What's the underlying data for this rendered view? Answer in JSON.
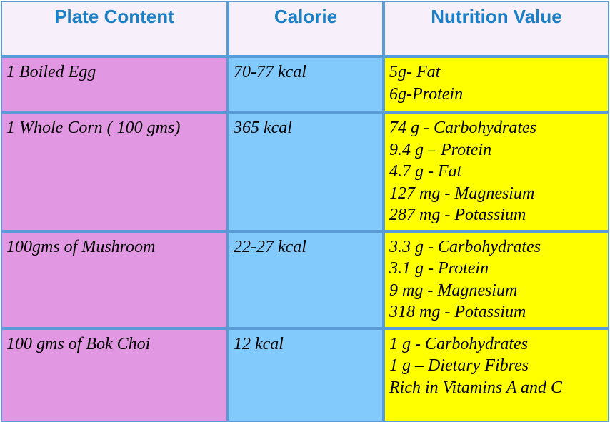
{
  "headers": {
    "plate": "Plate Content",
    "calorie": "Calorie",
    "nutrition": "Nutrition Value"
  },
  "rows": [
    {
      "plate": "1 Boiled Egg",
      "calorie": "70-77 kcal",
      "nutrition": [
        "5g- Fat",
        "6g-Protein"
      ]
    },
    {
      "plate": "1 Whole Corn ( 100 gms)",
      "calorie": "365 kcal",
      "nutrition": [
        "74 g - Carbohydrates",
        "9.4 g – Protein",
        "4.7 g - Fat",
        "127 mg - Magnesium",
        "287 mg - Potassium"
      ]
    },
    {
      "plate": "100gms of Mushroom",
      "calorie": "22-27 kcal",
      "nutrition": [
        "3.3 g - Carbohydrates",
        "3.1 g - Protein",
        "9 mg - Magnesium",
        "318 mg - Potassium"
      ]
    },
    {
      "plate": "100 gms of Bok Choi",
      "calorie": "12 kcal",
      "nutrition": [
        "1 g - Carbohydrates",
        "1 g – Dietary Fibres",
        "Rich in Vitamins A and C"
      ]
    }
  ],
  "colors": {
    "header_bg": "#f7f0fa",
    "header_text": "#1a7fc4",
    "plate_bg": "#e197e2",
    "calorie_bg": "#82c9fc",
    "nutrition_bg": "#ffff00",
    "border": "#5b9bd5"
  }
}
